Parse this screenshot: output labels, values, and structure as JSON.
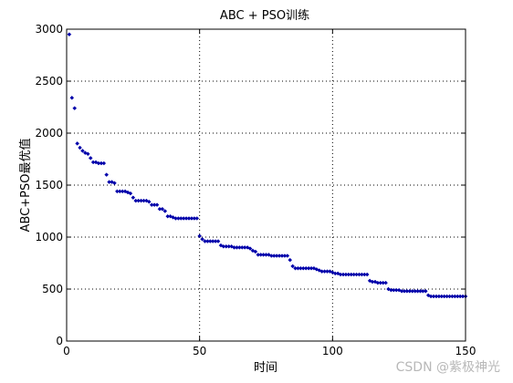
{
  "chart_data": {
    "type": "scatter",
    "title": "ABC + PSO训练",
    "xlabel": "时间",
    "ylabel": "ABC+PSO最优值",
    "xlim": [
      0,
      150
    ],
    "ylim": [
      0,
      3000
    ],
    "xticks": [
      0,
      50,
      100,
      150
    ],
    "yticks": [
      0,
      500,
      1000,
      1500,
      2000,
      2500,
      3000
    ],
    "grid": true,
    "marker_color": "#0000aa",
    "series": [
      {
        "x": [
          1,
          2,
          3,
          4,
          5,
          6,
          7,
          8,
          9,
          10,
          11,
          12,
          13,
          14,
          15,
          16,
          17,
          18,
          19,
          20,
          21,
          22,
          23,
          24,
          25,
          26,
          27,
          28,
          29,
          30,
          31,
          32,
          33,
          34,
          35,
          36,
          37,
          38,
          39,
          40,
          41,
          42,
          43,
          44,
          45,
          46,
          47,
          48,
          49,
          50,
          51,
          52,
          53,
          54,
          55,
          56,
          57,
          58,
          59,
          60,
          61,
          62,
          63,
          64,
          65,
          66,
          67,
          68,
          69,
          70,
          71,
          72,
          73,
          74,
          75,
          76,
          77,
          78,
          79,
          80,
          81,
          82,
          83,
          84,
          85,
          86,
          87,
          88,
          89,
          90,
          91,
          92,
          93,
          94,
          95,
          96,
          97,
          98,
          99,
          100,
          101,
          102,
          103,
          104,
          105,
          106,
          107,
          108,
          109,
          110,
          111,
          112,
          113,
          114,
          115,
          116,
          117,
          118,
          119,
          120,
          121,
          122,
          123,
          124,
          125,
          126,
          127,
          128,
          129,
          130,
          131,
          132,
          133,
          134,
          135,
          136,
          137,
          138,
          139,
          140,
          141,
          142,
          143,
          144,
          145,
          146,
          147,
          148,
          149,
          150
        ],
        "y": [
          2950,
          2340,
          2240,
          1900,
          1860,
          1830,
          1810,
          1800,
          1760,
          1720,
          1720,
          1710,
          1710,
          1710,
          1600,
          1530,
          1530,
          1520,
          1440,
          1440,
          1440,
          1440,
          1430,
          1420,
          1380,
          1350,
          1350,
          1350,
          1350,
          1350,
          1340,
          1310,
          1310,
          1310,
          1270,
          1270,
          1250,
          1200,
          1200,
          1190,
          1180,
          1180,
          1180,
          1180,
          1180,
          1180,
          1180,
          1180,
          1180,
          1010,
          980,
          960,
          960,
          960,
          960,
          960,
          960,
          920,
          910,
          910,
          910,
          910,
          900,
          900,
          900,
          900,
          900,
          900,
          890,
          870,
          860,
          830,
          830,
          830,
          830,
          830,
          820,
          820,
          820,
          820,
          820,
          820,
          820,
          780,
          720,
          700,
          700,
          700,
          700,
          700,
          700,
          700,
          700,
          690,
          680,
          670,
          670,
          670,
          670,
          660,
          650,
          650,
          640,
          640,
          640,
          640,
          640,
          640,
          640,
          640,
          640,
          640,
          640,
          580,
          570,
          570,
          560,
          560,
          560,
          560,
          500,
          490,
          490,
          490,
          490,
          480,
          480,
          480,
          480,
          480,
          480,
          480,
          480,
          480,
          480,
          440,
          430,
          430,
          430,
          430,
          430,
          430,
          430,
          430,
          430,
          430,
          430,
          430,
          430,
          430
        ]
      }
    ]
  },
  "watermark": "CSDN @紫极神光"
}
